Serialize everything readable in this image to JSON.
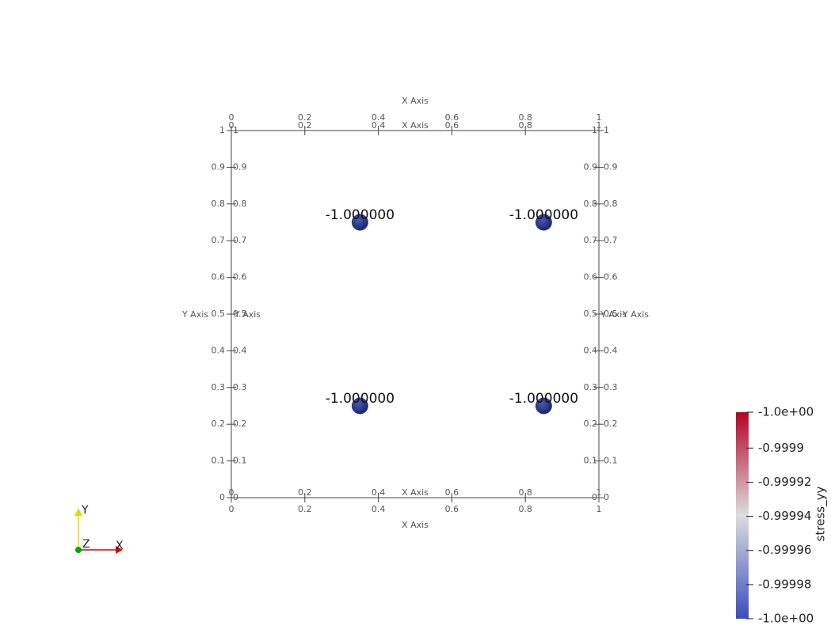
{
  "chart_data": {
    "type": "scatter",
    "x_axis_label": "X Axis",
    "y_axis_label": "Y Axis",
    "xlim": [
      0,
      1
    ],
    "ylim": [
      0,
      1
    ],
    "xticks": [
      0,
      0.2,
      0.4,
      0.6,
      0.8,
      1
    ],
    "yticks": [
      0,
      0.1,
      0.2,
      0.3,
      0.4,
      0.5,
      0.6,
      0.7,
      0.8,
      0.9,
      1
    ],
    "x": [
      0.35,
      0.85,
      0.35,
      0.85
    ],
    "y": [
      0.75,
      0.75,
      0.25,
      0.25
    ],
    "values": [
      -1,
      -1,
      -1,
      -1
    ],
    "value_labels": [
      "-1.000000",
      "-1.000000",
      "-1.000000",
      "-1.000000"
    ],
    "color": "#2b3990",
    "colorbar": {
      "title": "stress_yy",
      "clim": [
        -1,
        -0.999879
      ],
      "ticks": [
        {
          "value": -1,
          "label": "-1.0e+00"
        },
        -0.99998,
        -0.99996,
        -0.99994,
        -0.99992,
        -0.9999,
        {
          "value": -0.999879,
          "label": "-1.0e+00"
        }
      ],
      "colors": [
        "#3b4cc0",
        "#dddddd",
        "#b40426"
      ]
    }
  },
  "orientation_axes": [
    "X",
    "Y",
    "Z"
  ]
}
